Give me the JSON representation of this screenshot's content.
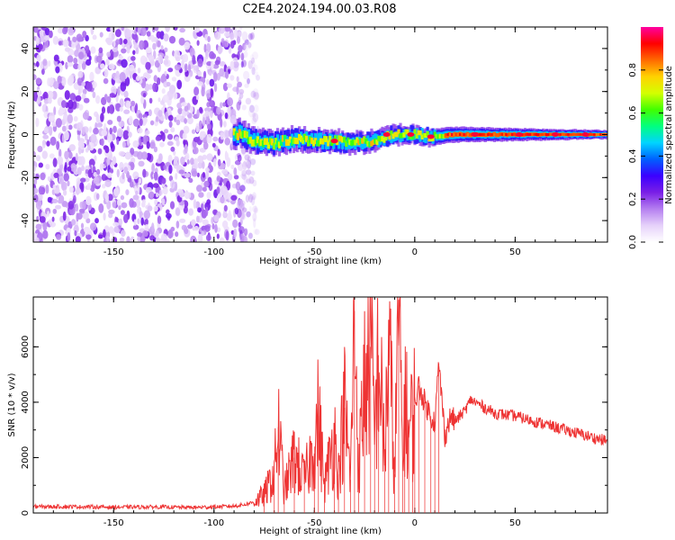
{
  "title": "C2E4.2024.194.00.03.R08",
  "chart_data": [
    {
      "type": "heatmap",
      "xlabel": "Height of straight line (km)",
      "ylabel": "Frequency (Hz)",
      "xlim": [
        -190,
        96
      ],
      "ylim": [
        -50,
        50
      ],
      "xticks": [
        -150,
        -100,
        -50,
        0,
        50
      ],
      "yticks": [
        -40,
        -20,
        0,
        20,
        40
      ],
      "colorbar": {
        "label": "Normalized spectral amplitude",
        "range": [
          0,
          1
        ],
        "ticks": [
          0.0,
          0.2,
          0.4,
          0.6,
          0.8
        ],
        "colormap": [
          "#ffffff",
          "#e6d2fa",
          "#b57ff0",
          "#7a1fe6",
          "#3b00ff",
          "#0060ff",
          "#00d4ff",
          "#00ff80",
          "#40ff00",
          "#d4ff00",
          "#ffd200",
          "#ff6a00",
          "#ff0000",
          "#ff00a0"
        ]
      },
      "regions": [
        {
          "name": "noise",
          "x": [
            -190,
            -78
          ],
          "freq_spread": [
            -50,
            50
          ],
          "amplitude": [
            0.05,
            0.25
          ]
        },
        {
          "name": "signal_band",
          "x": [
            -90,
            96
          ],
          "freq_center": 0,
          "freq_halfwidth": [
            6,
            2
          ],
          "amplitude": [
            0.3,
            1.0
          ]
        }
      ],
      "ridge": [
        {
          "x": -88,
          "f": 1
        },
        {
          "x": -80,
          "f": -3
        },
        {
          "x": -70,
          "f": -4
        },
        {
          "x": -60,
          "f": -2
        },
        {
          "x": -50,
          "f": -3
        },
        {
          "x": -40,
          "f": -3
        },
        {
          "x": -30,
          "f": -4
        },
        {
          "x": -20,
          "f": -3
        },
        {
          "x": -10,
          "f": 0
        },
        {
          "x": 0,
          "f": 0
        },
        {
          "x": 10,
          "f": -1
        },
        {
          "x": 20,
          "f": 0
        },
        {
          "x": 50,
          "f": 0
        },
        {
          "x": 96,
          "f": 0
        }
      ],
      "hotspots": [
        {
          "x": -40,
          "f": -3
        },
        {
          "x": -14,
          "f": 0
        },
        {
          "x": -2,
          "f": 0
        },
        {
          "x": 8,
          "f": -1
        },
        {
          "x": 30,
          "f": 0
        },
        {
          "x": 52,
          "f": 0
        },
        {
          "x": 70,
          "f": 0
        },
        {
          "x": 85,
          "f": 0
        }
      ]
    },
    {
      "type": "line",
      "xlabel": "Height of straight line (km)",
      "ylabel": "SNR (10 * v/v)",
      "xlim": [
        -190,
        96
      ],
      "ylim": [
        0,
        7800
      ],
      "xticks": [
        -150,
        -100,
        -50,
        0,
        50
      ],
      "yticks": [
        0,
        2000,
        4000,
        6000
      ],
      "color": "#ee3333",
      "series": [
        {
          "x": [
            -190,
            -170,
            -150,
            -130,
            -110,
            -100,
            -90,
            -85,
            -80,
            -75,
            -70,
            -68,
            -65,
            -60,
            -55,
            -50,
            -48,
            -45,
            -40,
            -38,
            -35,
            -32,
            -30,
            -28,
            -25,
            -22,
            -20,
            -18,
            -15,
            -13,
            -10,
            -8,
            -6,
            -5,
            -3,
            -1,
            0,
            2,
            5,
            8,
            10,
            12,
            15,
            18,
            20,
            25,
            28,
            30,
            35,
            40,
            50,
            60,
            70,
            80,
            90,
            96
          ],
          "y": [
            230,
            230,
            210,
            220,
            200,
            220,
            250,
            300,
            400,
            650,
            1400,
            3100,
            800,
            2000,
            1200,
            2400,
            3500,
            1000,
            2800,
            1400,
            3800,
            1200,
            7300,
            1500,
            4800,
            6000,
            2800,
            5700,
            2000,
            6200,
            1400,
            7700,
            1800,
            4200,
            2800,
            3500,
            3900,
            4600,
            4000,
            3500,
            3300,
            5400,
            2800,
            3500,
            3300,
            3700,
            4100,
            4000,
            3800,
            3600,
            3500,
            3300,
            3100,
            2900,
            2700,
            2600
          ]
        }
      ]
    }
  ]
}
